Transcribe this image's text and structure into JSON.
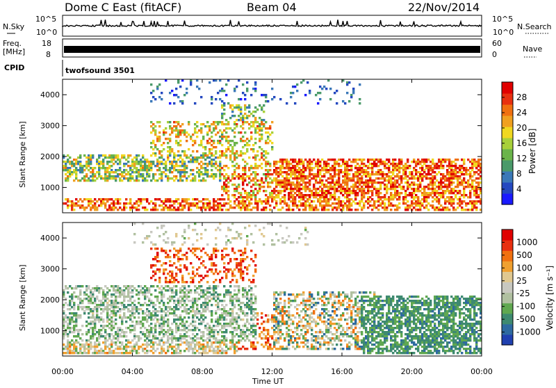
{
  "header": {
    "site": "Dome C East (fitACF)",
    "beam": "Beam 04",
    "date": "22/Nov/2014"
  },
  "top_panels": {
    "nsky_label": "N.Sky",
    "nsky_ticks": [
      "10^5",
      "10^0"
    ],
    "nsearch_label": "N.Search",
    "nsearch_ticks": [
      "10^5",
      "10^0"
    ],
    "freq_label": "Freq.",
    "freq_unit": "[MHz]",
    "freq_ticks": [
      "18",
      "8"
    ],
    "nave_label": "Nave",
    "nave_ticks": [
      "60",
      "0"
    ],
    "cpid_label": "CPID",
    "cpid_value": "twofsound 3501"
  },
  "chart_data": [
    {
      "type": "heatmap",
      "name": "power",
      "ylabel": "Slant Range [km]",
      "ylim": [
        180,
        4500
      ],
      "yticks": [
        1000,
        2000,
        3000,
        4000
      ],
      "xlim": [
        0,
        24
      ],
      "colorbar": {
        "label": "Power [dB]",
        "range": [
          0,
          32
        ],
        "ticks": [
          "28",
          "24",
          "20",
          "16",
          "12",
          "8",
          "4"
        ],
        "colors": [
          "#1a1aff",
          "#2448c0",
          "#3a78b8",
          "#4a9a6a",
          "#6ab44a",
          "#a8d03a",
          "#f0d820",
          "#f0a020",
          "#f07010",
          "#e83010",
          "#e00000"
        ]
      }
    },
    {
      "type": "heatmap",
      "name": "velocity",
      "ylabel": "Slant Range [km]",
      "ylim": [
        180,
        4500
      ],
      "yticks": [
        1000,
        2000,
        3000,
        4000
      ],
      "xlim": [
        0,
        24
      ],
      "xlabel": "Time UT",
      "xticks": [
        "00:00",
        "04:00",
        "08:00",
        "12:00",
        "16:00",
        "20:00",
        "00:00"
      ],
      "colorbar": {
        "label": "Velocity [m s⁻¹]",
        "ticks": [
          "1000",
          "500",
          "100",
          "25",
          "-25",
          "-100",
          "-500",
          "-1000"
        ],
        "colors": [
          "#2040b0",
          "#2e6aa0",
          "#3e8a70",
          "#60a850",
          "#b0c0a0",
          "#c8c8c0",
          "#e0c890",
          "#f0a030",
          "#f07010",
          "#e83010",
          "#e00000"
        ]
      }
    }
  ]
}
